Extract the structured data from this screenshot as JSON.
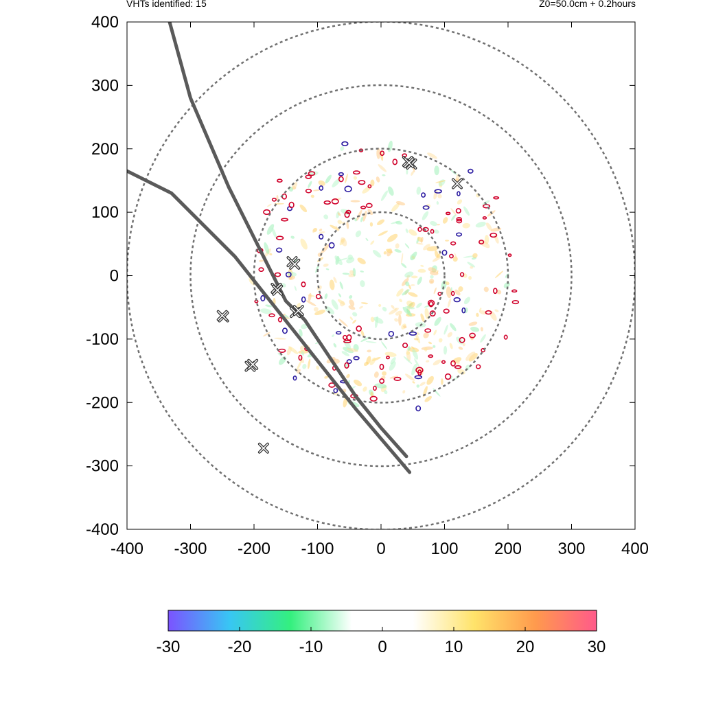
{
  "header": {
    "left": "VHTs identified: 15",
    "right": "Z0=50.0cm  + 0.2hours"
  },
  "chart_data": {
    "type": "scatter",
    "title": "",
    "xlabel": "",
    "ylabel": "",
    "xlim": [
      -400,
      400
    ],
    "ylim": [
      -400,
      400
    ],
    "xticks": [
      -400,
      -300,
      -200,
      -100,
      0,
      100,
      200,
      300,
      400
    ],
    "yticks": [
      -400,
      -300,
      -200,
      -100,
      0,
      100,
      200,
      300,
      400
    ],
    "xtick_labels": [
      "-400",
      "-300",
      "-200",
      "-100",
      "0",
      "100",
      "200",
      "300",
      "400"
    ],
    "ytick_labels": [
      "-400",
      "-300",
      "-200",
      "-100",
      "0",
      "100",
      "200",
      "300",
      "400"
    ],
    "grid": false,
    "range_rings": [
      100,
      200,
      300,
      400
    ],
    "tracks": [
      {
        "points": [
          [
            45,
            -310
          ],
          [
            -40,
            -210
          ],
          [
            -135,
            -90
          ],
          [
            -230,
            30
          ],
          [
            -330,
            130
          ],
          [
            -400,
            165
          ]
        ]
      },
      {
        "points": [
          [
            -333,
            400
          ],
          [
            -300,
            280
          ],
          [
            -240,
            140
          ],
          [
            -180,
            20
          ],
          [
            -150,
            -40
          ],
          [
            -120,
            -70
          ],
          [
            -80,
            -130
          ],
          [
            -40,
            -190
          ],
          [
            0,
            -240
          ],
          [
            40,
            -285
          ]
        ]
      }
    ],
    "vht_markers": [
      {
        "x": 42,
        "y": 180
      },
      {
        "x": 48,
        "y": 176
      },
      {
        "x": 120,
        "y": 145
      },
      {
        "x": -140,
        "y": 22
      },
      {
        "x": -136,
        "y": 18
      },
      {
        "x": -165,
        "y": -20
      },
      {
        "x": -135,
        "y": -58
      },
      {
        "x": -130,
        "y": -55
      },
      {
        "x": -248,
        "y": -65
      },
      {
        "x": -206,
        "y": -143
      },
      {
        "x": -202,
        "y": -140
      },
      {
        "x": -185,
        "y": -272
      },
      {
        "x": 44,
        "y": 178
      },
      {
        "x": -163,
        "y": -23
      },
      {
        "x": -250,
        "y": -63
      }
    ],
    "colorbar": {
      "ticks": [
        -30,
        -20,
        -10,
        0,
        10,
        20,
        30
      ],
      "tick_labels": [
        "-30",
        "-20",
        "-10",
        "0",
        "10",
        "20",
        "30"
      ],
      "min": -30,
      "max": 30,
      "colors": [
        "#7b53ff",
        "#38c6f4",
        "#34f07e",
        "#ffffff",
        "#ffffff",
        "#ffe36a",
        "#ff9a4d",
        "#ff5a8a"
      ]
    },
    "colors": {
      "ring": "#707070",
      "track": "#5a5a5a",
      "contour_pos": "#d0002a",
      "contour_neg": "#2a1aa0",
      "marker": "#333333"
    }
  }
}
